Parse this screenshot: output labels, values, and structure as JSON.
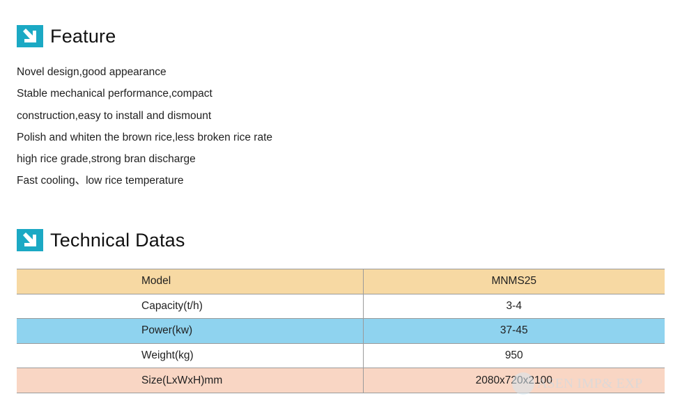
{
  "feature": {
    "title": "Feature",
    "items": [
      "Novel design,good appearance",
      "Stable mechanical performance,compact",
      "construction,easy to install and dismount",
      "Polish and whiten the brown rice,less broken rice rate",
      "high rice grade,strong bran discharge",
      "Fast cooling、low rice temperature"
    ]
  },
  "technical": {
    "title": "Technical Datas",
    "rows": [
      {
        "label": "Model",
        "value": "MNMS25",
        "color": "#f7d9a3"
      },
      {
        "label": "Capacity(t/h)",
        "value": "3-4",
        "color": "#ffffff"
      },
      {
        "label": "Power(kw)",
        "value": "37-45",
        "color": "#8fd3ef"
      },
      {
        "label": "Weight(kg)",
        "value": "950",
        "color": "#ffffff"
      },
      {
        "label": "Size(LxWxH)mm",
        "value": "2080x720x2100",
        "color": "#f9d6c4"
      }
    ]
  },
  "watermark": {
    "text": "ASEN IMP& EXP"
  },
  "colors": {
    "icon_accent": "#1ba9c4"
  },
  "icons": {
    "section_icon": "arrow-down-right-icon"
  }
}
